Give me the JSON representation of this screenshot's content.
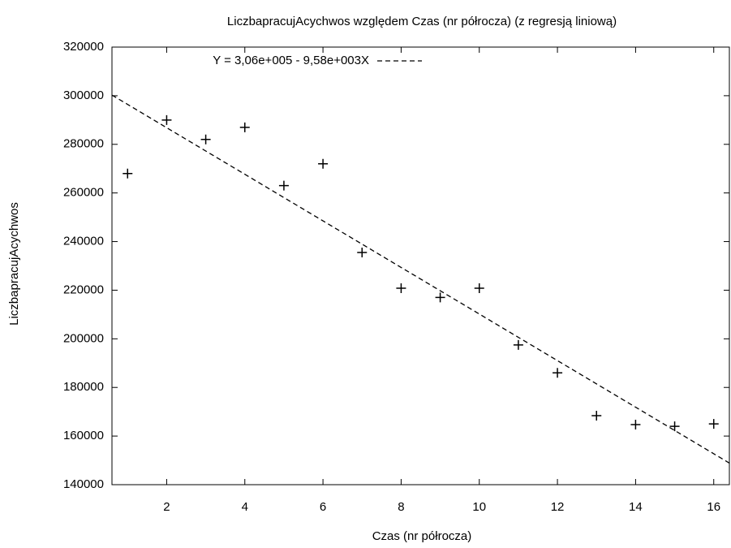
{
  "chart_data": {
    "type": "scatter",
    "title": "LiczbapracujAcychwos względem Czas  (nr półrocza) (z regresją liniową)",
    "x_label": "Czas  (nr półrocza)",
    "y_label": "LiczbapracujAcychwos",
    "series": [
      {
        "name": "LiczbapracujAcychwos",
        "color": "#000000",
        "x": [
          1,
          2,
          3,
          4,
          5,
          6,
          7,
          8,
          9,
          10,
          11,
          12,
          13,
          14,
          15,
          16
        ],
        "values": [
          268000,
          290000,
          282000,
          287000,
          263000,
          272000,
          235500,
          220800,
          217000,
          220800,
          197500,
          186000,
          168400,
          164700,
          164000,
          165000
        ]
      }
    ],
    "regression": {
      "label": "Y = 3,06e+005 - 9,58e+003X",
      "intercept": 306000,
      "slope": -9580,
      "color": "#000000"
    },
    "xlim": [
      0.6,
      16.4
    ],
    "xticks": [
      2,
      4,
      6,
      8,
      10,
      12,
      14,
      16
    ],
    "ylim": [
      140000,
      320000
    ],
    "yticks": [
      140000,
      160000,
      180000,
      200000,
      220000,
      240000,
      260000,
      280000,
      300000,
      320000
    ],
    "grid": false
  }
}
